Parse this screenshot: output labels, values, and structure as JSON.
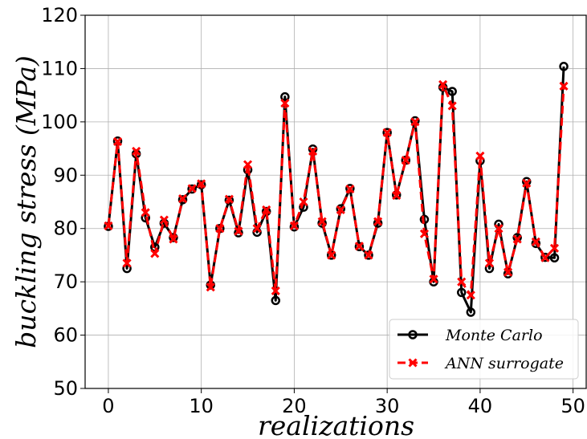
{
  "chart_data": {
    "type": "line",
    "xlabel": "realizations",
    "ylabel": "buckling stress (MPa)",
    "xlim": [
      -2.5,
      51.5
    ],
    "ylim": [
      50,
      120
    ],
    "xticks": [
      0,
      10,
      20,
      30,
      40,
      50
    ],
    "yticks": [
      50,
      60,
      70,
      80,
      90,
      100,
      110,
      120
    ],
    "grid": true,
    "legend_position": "bottom-right",
    "series": [
      {
        "name": "Monte Carlo",
        "color": "#000000",
        "marker": "circle",
        "line_style": "solid",
        "x": [
          0,
          1,
          2,
          3,
          4,
          5,
          6,
          7,
          8,
          9,
          10,
          11,
          12,
          13,
          14,
          15,
          16,
          17,
          18,
          19,
          20,
          21,
          22,
          23,
          24,
          25,
          26,
          27,
          28,
          29,
          30,
          31,
          32,
          33,
          34,
          35,
          36,
          37,
          38,
          39,
          40,
          41,
          42,
          43,
          44,
          45,
          46,
          47,
          48,
          49
        ],
        "values": [
          80.4,
          96.4,
          72.5,
          94.0,
          82.0,
          76.5,
          81.0,
          78.3,
          85.4,
          87.4,
          88.2,
          69.4,
          80.0,
          85.3,
          79.2,
          91.0,
          79.3,
          83.2,
          66.5,
          104.7,
          80.3,
          84.0,
          94.9,
          81.0,
          75.0,
          83.7,
          87.5,
          76.6,
          75.0,
          81.0,
          98.0,
          86.3,
          92.8,
          100.2,
          81.7,
          70.0,
          106.5,
          105.7,
          68.0,
          64.3,
          92.7,
          72.5,
          80.8,
          71.5,
          78.3,
          88.8,
          77.2,
          74.6,
          74.5,
          110.4
        ]
      },
      {
        "name": "ANN surrogate",
        "color": "#ff0000",
        "marker": "x",
        "line_style": "dashed",
        "x": [
          0,
          1,
          2,
          3,
          4,
          5,
          6,
          7,
          8,
          9,
          10,
          11,
          12,
          13,
          14,
          15,
          16,
          17,
          18,
          19,
          20,
          21,
          22,
          23,
          24,
          25,
          26,
          27,
          28,
          29,
          30,
          31,
          32,
          33,
          34,
          35,
          36,
          37,
          38,
          39,
          40,
          41,
          42,
          43,
          44,
          45,
          46,
          47,
          48,
          49
        ],
        "values": [
          80.5,
          96.3,
          73.5,
          94.5,
          83.0,
          75.3,
          81.6,
          78.0,
          85.6,
          87.5,
          88.4,
          69.0,
          80.0,
          85.5,
          79.5,
          92.0,
          80.0,
          83.5,
          68.3,
          103.5,
          80.5,
          85.0,
          94.5,
          81.3,
          75.0,
          83.5,
          87.4,
          76.7,
          75.0,
          81.3,
          98.0,
          86.2,
          92.8,
          100.0,
          79.0,
          70.5,
          107.0,
          103.0,
          70.0,
          67.5,
          93.6,
          73.5,
          80.0,
          71.8,
          78.0,
          88.5,
          77.5,
          74.5,
          76.3,
          106.7
        ]
      }
    ]
  }
}
